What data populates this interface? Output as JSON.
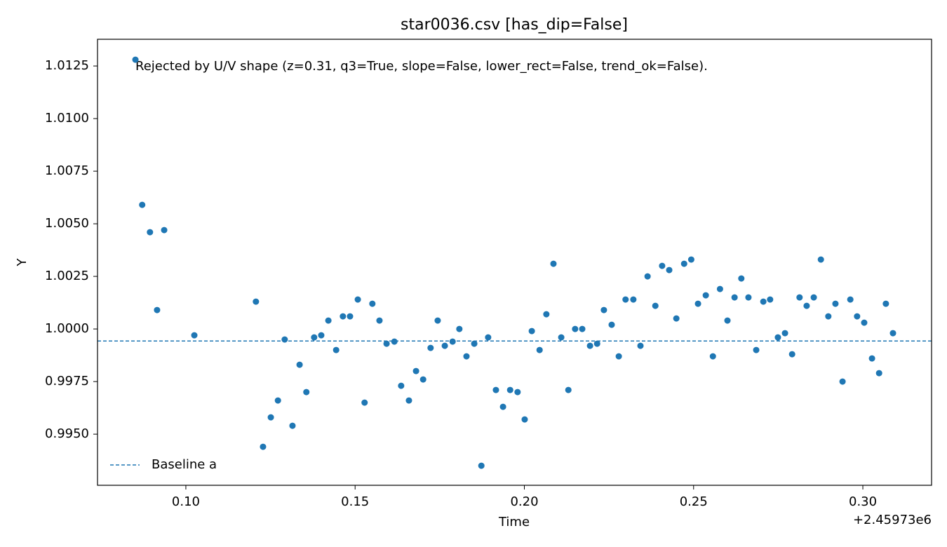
{
  "chart_data": {
    "type": "scatter",
    "title": "star0036.csv [has_dip=False]",
    "annotation": "Rejected by U/V shape (z=0.31, q3=True, slope=False, lower_rect=False, trend_ok=False).",
    "xlabel": "Time",
    "ylabel": "Y",
    "x_offset_label": "+2.45973e6",
    "color": "#1f77b4",
    "x": [
      0.0851,
      0.0871,
      0.0894,
      0.0915,
      0.0936,
      0.1025,
      0.1207,
      0.1228,
      0.1251,
      0.1272,
      0.1292,
      0.1315,
      0.1336,
      0.1356,
      0.1379,
      0.14,
      0.1421,
      0.1444,
      0.1464,
      0.1485,
      0.1508,
      0.1528,
      0.1551,
      0.1572,
      0.1593,
      0.1616,
      0.1636,
      0.1659,
      0.168,
      0.1701,
      0.1723,
      0.1744,
      0.1765,
      0.1788,
      0.1808,
      0.1829,
      0.1852,
      0.1873,
      0.1893,
      0.1916,
      0.1937,
      0.1958,
      0.198,
      0.2001,
      0.2022,
      0.2045,
      0.2065,
      0.2086,
      0.2109,
      0.213,
      0.215,
      0.2171,
      0.2194,
      0.2215,
      0.2235,
      0.2258,
      0.2279,
      0.2299,
      0.2322,
      0.2343,
      0.2364,
      0.2387,
      0.2407,
      0.2428,
      0.2449,
      0.2472,
      0.2493,
      0.2513,
      0.2536,
      0.2557,
      0.2578,
      0.26,
      0.2621,
      0.2641,
      0.2662,
      0.2685,
      0.2706,
      0.2726,
      0.2749,
      0.277,
      0.2791,
      0.2813,
      0.2834,
      0.2855,
      0.2876,
      0.2898,
      0.2919,
      0.294,
      0.2963,
      0.2983,
      0.3004,
      0.3027,
      0.3048,
      0.3068,
      0.3089
    ],
    "values": [
      1.0128,
      1.0059,
      1.0046,
      1.0009,
      1.0047,
      0.9997,
      1.0013,
      0.9944,
      0.9958,
      0.9966,
      0.9995,
      0.9954,
      0.9983,
      0.997,
      0.9996,
      0.9997,
      1.0004,
      0.999,
      1.0006,
      1.0006,
      1.0014,
      0.9965,
      1.0012,
      1.0004,
      0.9993,
      0.9994,
      0.9973,
      0.9966,
      0.998,
      0.9976,
      0.9991,
      1.0004,
      0.9992,
      0.9994,
      1.0,
      0.9987,
      0.9993,
      0.9935,
      0.9996,
      0.9971,
      0.9963,
      0.9971,
      0.997,
      0.9957,
      0.9999,
      0.999,
      1.0007,
      1.0031,
      0.9996,
      0.9971,
      1.0,
      1.0,
      0.9992,
      0.9993,
      1.0009,
      1.0002,
      0.9987,
      1.0014,
      1.0014,
      0.9992,
      1.0025,
      1.0011,
      1.003,
      1.0028,
      1.0005,
      1.0031,
      1.0033,
      1.0012,
      1.0016,
      0.9987,
      1.0019,
      1.0004,
      1.0015,
      1.0024,
      1.0015,
      0.999,
      1.0013,
      1.0014,
      0.9996,
      0.9998,
      0.9988,
      1.0015,
      1.0011,
      1.0015,
      1.0033,
      1.0006,
      1.0012,
      0.9975,
      1.0014,
      1.0006,
      1.0003,
      0.9986,
      0.9979,
      1.0012,
      0.9998
    ],
    "baseline": {
      "name": "Baseline a",
      "value": 0.99943,
      "color": "#1f77b4",
      "dashed": true
    },
    "legend": "lower left",
    "xlim": [
      0.0739,
      0.3203
    ],
    "ylim": [
      0.99257,
      1.01377
    ],
    "xticks": [
      {
        "value": 0.1,
        "label": "0.10"
      },
      {
        "value": 0.15,
        "label": "0.15"
      },
      {
        "value": 0.2,
        "label": "0.20"
      },
      {
        "value": 0.25,
        "label": "0.25"
      },
      {
        "value": 0.3,
        "label": "0.30"
      }
    ],
    "yticks": [
      {
        "value": 0.995,
        "label": "0.9950"
      },
      {
        "value": 0.9975,
        "label": "0.9975"
      },
      {
        "value": 1.0,
        "label": "1.0000"
      },
      {
        "value": 1.0025,
        "label": "1.0025"
      },
      {
        "value": 1.005,
        "label": "1.0050"
      },
      {
        "value": 1.0075,
        "label": "1.0075"
      },
      {
        "value": 1.01,
        "label": "1.0100"
      },
      {
        "value": 1.0125,
        "label": "1.0125"
      }
    ]
  }
}
